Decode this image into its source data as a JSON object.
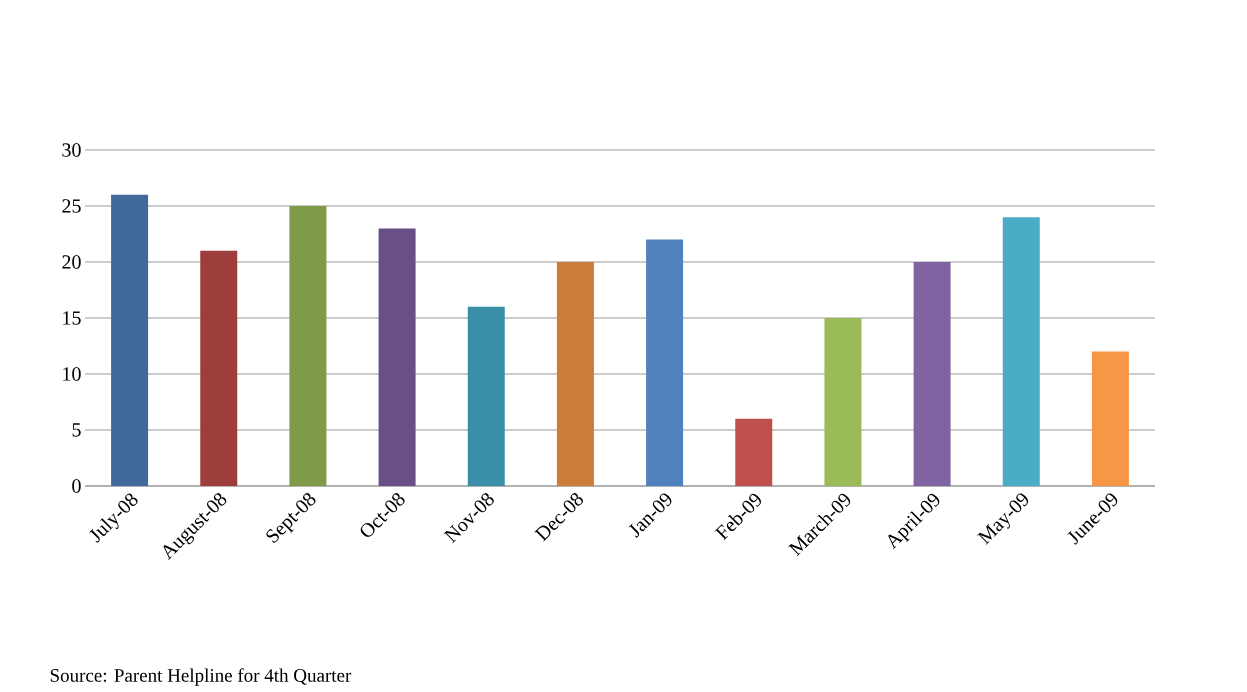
{
  "chart_data": {
    "type": "bar",
    "categories": [
      "July-08",
      "August-08",
      "Sept-08",
      "Oct-08",
      "Nov-08",
      "Dec-08",
      "Jan-09",
      "Feb-09",
      "March-09",
      "April-09",
      "May-09",
      "June-09"
    ],
    "values": [
      26,
      21,
      25,
      23,
      16,
      20,
      22,
      6,
      15,
      20,
      24,
      12
    ],
    "colors": [
      "#3f6a9b",
      "#9e3e3c",
      "#7f9b48",
      "#684f86",
      "#3a8ea5",
      "#cc7b38",
      "#4f81bd",
      "#c0504d",
      "#9bbb59",
      "#8064a2",
      "#4bacc6",
      "#f79646"
    ],
    "ylim": [
      0,
      30
    ],
    "yticks": [
      0,
      5,
      10,
      15,
      20,
      25,
      30
    ],
    "grid": "y",
    "annotations": [
      "Source: Parent Helpline for 4th Quarter"
    ]
  }
}
